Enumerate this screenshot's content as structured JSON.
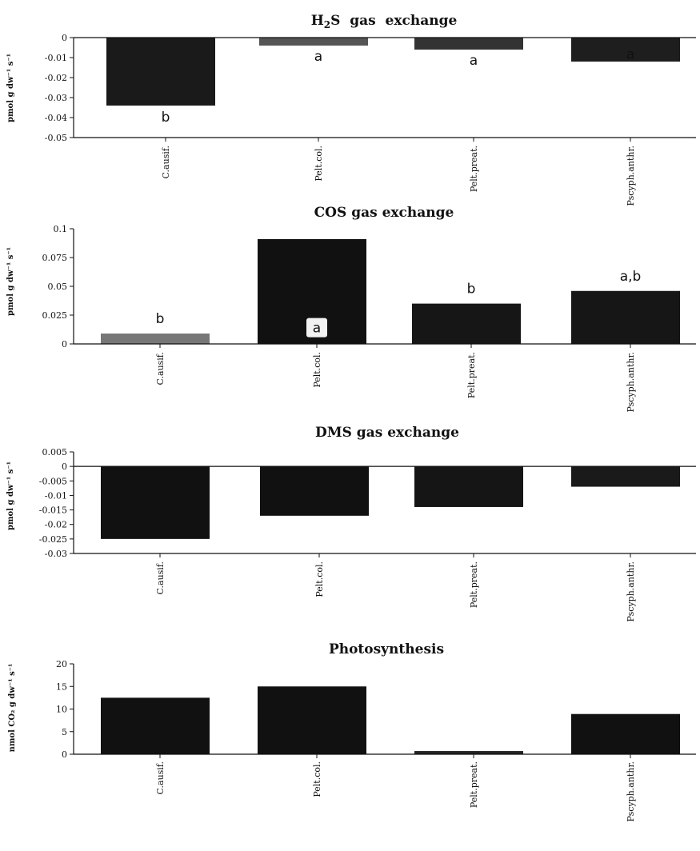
{
  "chart_data": [
    {
      "type": "bar",
      "title": "H2S gas exchange",
      "title_main": "H",
      "title_sub": "2",
      "title_rest": "S  gas  exchange",
      "ylabel": "pmol g dw⁻¹ s⁻¹",
      "categories": [
        "C.ausif.",
        "Pelt.col.",
        "Pelt.preat.",
        "Pscyph.anthr."
      ],
      "values": [
        -0.034,
        -0.004,
        -0.006,
        -0.012
      ],
      "ylim": [
        -0.05,
        0
      ],
      "yticks": [
        "0",
        "-0.01",
        "-0.02",
        "-0.03",
        "-0.04",
        "-0.05"
      ],
      "ytick_values": [
        0,
        -0.01,
        -0.02,
        -0.03,
        -0.04,
        -0.05
      ],
      "annotations": [
        "b",
        "a",
        "a",
        "a"
      ],
      "annotation_values": [
        -0.042,
        -0.0115,
        -0.0135,
        -0.0105
      ],
      "bar_colors": [
        "#1a1a1a",
        "#555555",
        "#333333",
        "#1e1e1e"
      ],
      "grid": false
    },
    {
      "type": "bar",
      "title": "COS gas exchange",
      "ylabel": "pmol g dw⁻¹ s⁻¹",
      "categories": [
        "C.ausif.",
        "Pelt.col.",
        "Pelt.preat.",
        "Pscyph.anthr."
      ],
      "values": [
        0.009,
        0.091,
        0.035,
        0.046
      ],
      "ylim": [
        0,
        0.1
      ],
      "yticks": [
        "0.1",
        "0.075",
        "0.05",
        "0.025",
        "0"
      ],
      "ytick_values": [
        0.1,
        0.075,
        0.05,
        0.025,
        0
      ],
      "annotations": [
        "b",
        "a",
        "b",
        "a,b"
      ],
      "annotation_values": [
        0.018,
        0.01,
        0.044,
        0.055
      ],
      "bar_colors": [
        "#777777",
        "#111111",
        "#161616",
        "#161616"
      ],
      "grid": false
    },
    {
      "type": "bar",
      "title": "DMS gas exchange",
      "ylabel": "pmol g dw⁻¹ s⁻¹",
      "categories": [
        "C.ausif.",
        "Pelt.col.",
        "Pelt.preat.",
        "Pscyph.anthr."
      ],
      "values": [
        -0.025,
        -0.017,
        -0.014,
        -0.007
      ],
      "ylim": [
        -0.03,
        0.005
      ],
      "yticks": [
        "0.005",
        "0",
        "-0.005",
        "-0.01",
        "-0.015",
        "-0.02",
        "-0.025",
        "-0.03"
      ],
      "ytick_values": [
        0.005,
        0,
        -0.005,
        -0.01,
        -0.015,
        -0.02,
        -0.025,
        -0.03
      ],
      "bar_colors": [
        "#111111",
        "#111111",
        "#151515",
        "#1a1a1a"
      ],
      "grid": false
    },
    {
      "type": "bar",
      "title": "Photosynthesis",
      "ylabel": "nmol CO₂ g dw⁻¹ s⁻¹",
      "categories": [
        "C.ausif.",
        "Pelt.col.",
        "Pelt.preat.",
        "Pscyph.anthr."
      ],
      "values": [
        12.5,
        15,
        0.7,
        8.9
      ],
      "ylim": [
        0,
        20
      ],
      "yticks": [
        "20",
        "15",
        "10",
        "5",
        "0"
      ],
      "ytick_values": [
        20,
        15,
        10,
        5,
        0
      ],
      "bar_colors": [
        "#111111",
        "#111111",
        "#222222",
        "#111111"
      ],
      "grid": false
    }
  ]
}
